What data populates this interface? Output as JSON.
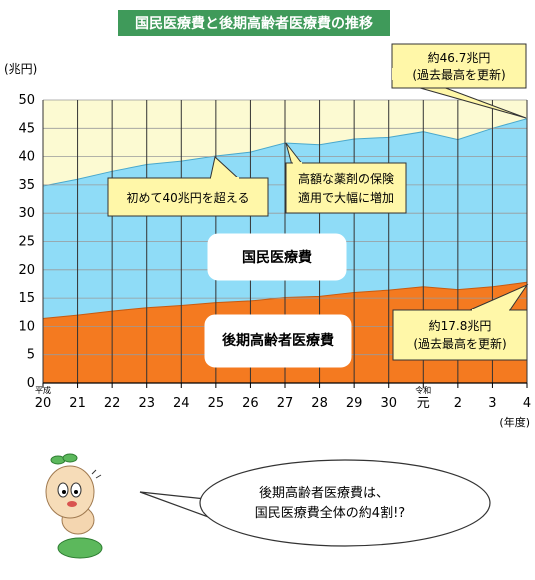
{
  "chart_data": {
    "type": "area",
    "title": "国民医療費と後期高齢者医療費の推移",
    "ylabel": "(兆円)",
    "xlabel": "(年度)",
    "ylim": [
      0,
      50
    ],
    "yticks": [
      0,
      5,
      10,
      15,
      20,
      25,
      30,
      35,
      40,
      45,
      50
    ],
    "categories": [
      "20",
      "21",
      "22",
      "23",
      "24",
      "25",
      "26",
      "27",
      "28",
      "29",
      "30",
      "元",
      "2",
      "3",
      "4"
    ],
    "era_labels": [
      {
        "text": "平成",
        "category": "20"
      },
      {
        "text": "令和",
        "category": "元"
      }
    ],
    "series": [
      {
        "name": "国民医療費",
        "values": [
          34.8,
          36.0,
          37.4,
          38.6,
          39.2,
          40.1,
          40.8,
          42.4,
          42.1,
          43.1,
          43.4,
          44.4,
          43.0,
          45.0,
          46.7
        ]
      },
      {
        "name": "後期高齢者医療費",
        "values": [
          11.4,
          12.0,
          12.7,
          13.3,
          13.7,
          14.2,
          14.5,
          15.1,
          15.3,
          16.0,
          16.4,
          17.0,
          16.5,
          17.0,
          17.8
        ]
      }
    ],
    "annotations": {
      "max_total": [
        "約46.7兆円",
        "(過去最高を更新)"
      ],
      "max_elderly": [
        "約17.8兆円",
        "(過去最高を更新)"
      ],
      "over40": "初めて40兆円を超える",
      "drug": [
        "高額な薬剤の保険",
        "適用で大幅に増加"
      ]
    },
    "speech": [
      "後期高齢者医療費は、",
      "国民医療費全体の約4割!?"
    ],
    "colors": {
      "total": "#8fdcf7",
      "elderly": "#f47a20",
      "background": "#fcfad2",
      "note_box": "#fff7a8",
      "title_bg": "#3f9a5a"
    }
  }
}
